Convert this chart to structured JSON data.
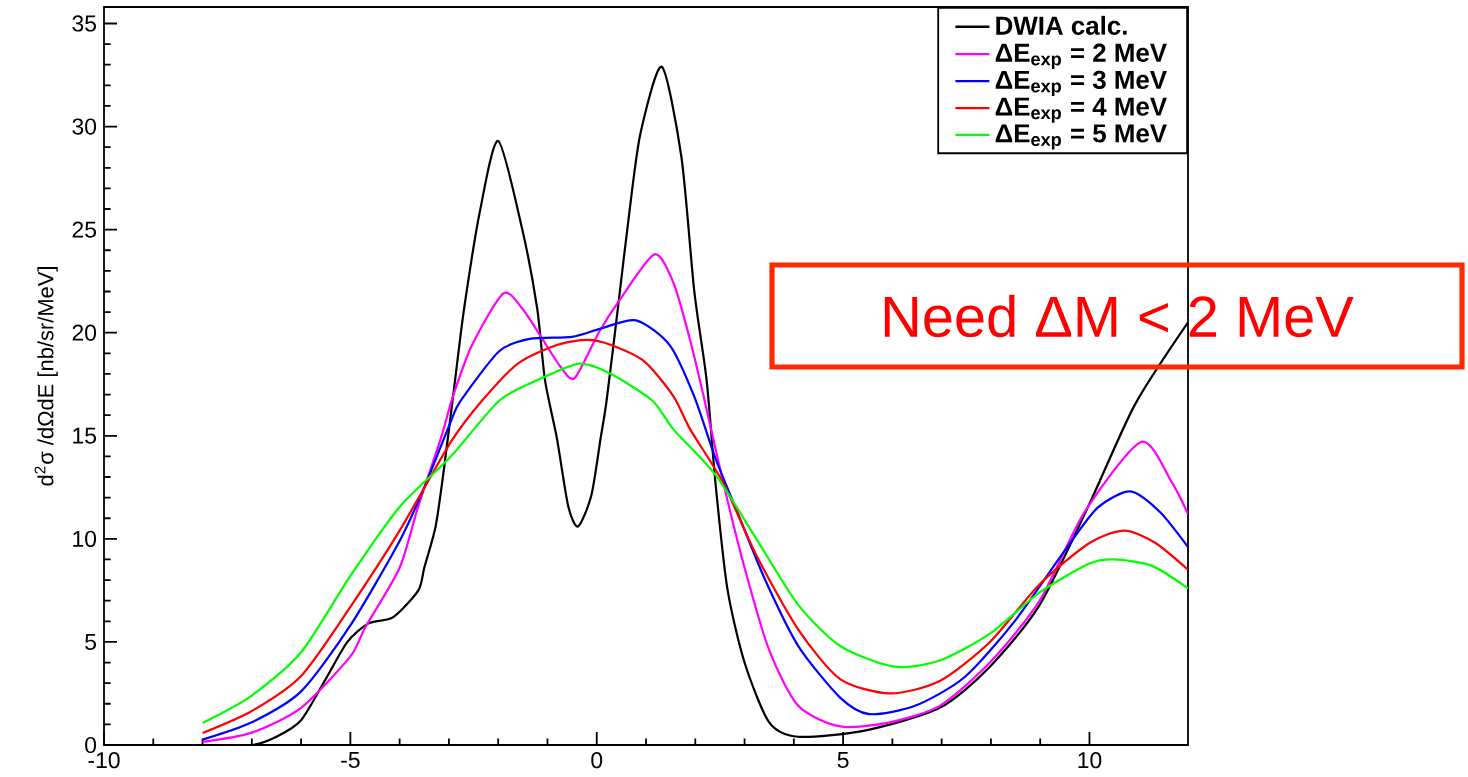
{
  "chart_data": {
    "type": "line",
    "ylabel": "d$^{2}$σ /dΩdE [nb/sr/MeV]",
    "xlim": [
      -10,
      12
    ],
    "ylim": [
      0,
      35.8
    ],
    "xticks": [
      -10,
      -5,
      0,
      5,
      10
    ],
    "yticks": [
      0,
      5,
      10,
      15,
      20,
      25,
      30,
      35
    ],
    "legend": "top right",
    "annotations": [
      "Need ΔM < 2 MeV"
    ],
    "series": [
      {
        "name": "DWIA calc.",
        "color": "#000000",
        "x": [
          -8,
          -7,
          -6.5,
          -6,
          -5.5,
          -5.06,
          -4.63,
          -4.13,
          -3.62,
          -3.5,
          -3.27,
          -3.1,
          -2.88,
          -2.69,
          -2.37,
          -2.0,
          -1.52,
          -1.21,
          -1.05,
          -0.81,
          -0.58,
          -0.38,
          -0.11,
          0.08,
          0.2,
          0.43,
          0.67,
          0.89,
          1.32,
          1.72,
          1.98,
          2.23,
          2.41,
          2.65,
          3.0,
          3.5,
          4.09,
          5.44,
          6.96,
          7.98,
          8.99,
          10.0,
          10.92,
          12.0
        ],
        "values": [
          0,
          0,
          0.4,
          1.2,
          3.2,
          5.0,
          5.9,
          6.2,
          7.5,
          8.6,
          10.6,
          13.4,
          17.6,
          21.2,
          25.9,
          29.3,
          25.1,
          21.2,
          17.7,
          14.9,
          11.6,
          10.6,
          12.1,
          14.9,
          16.7,
          21.2,
          26.0,
          29.7,
          32.9,
          28.5,
          22.0,
          17.7,
          12.7,
          7.6,
          4.0,
          1.1,
          0.4,
          0.7,
          1.8,
          3.8,
          6.8,
          11.7,
          16.5,
          20.5
        ]
      },
      {
        "name": "ΔE$_{exp}$ = 2 MeV",
        "color": "#ff00ff",
        "x": [
          -8,
          -7,
          -6,
          -5,
          -4.7,
          -4,
          -3.62,
          -3.16,
          -2.92,
          -2.53,
          -1.9,
          -1.52,
          -1.13,
          -0.75,
          -0.45,
          0.04,
          0.47,
          1.17,
          1.56,
          1.9,
          2.19,
          2.57,
          3.0,
          3.5,
          4.09,
          4.94,
          5.95,
          6.96,
          7.98,
          8.99,
          9.9,
          11.05,
          11.68,
          12.0
        ],
        "values": [
          0.15,
          0.6,
          1.8,
          4.3,
          5.7,
          8.6,
          11.6,
          14.9,
          16.9,
          19.4,
          21.9,
          21.2,
          19.8,
          18.4,
          17.8,
          20.0,
          21.6,
          23.8,
          22.4,
          19.6,
          16.7,
          12.7,
          8.6,
          4.6,
          1.9,
          0.9,
          1.1,
          1.9,
          4.0,
          7.0,
          11.3,
          14.7,
          12.7,
          11.2
        ]
      },
      {
        "name": "ΔE$_{exp}$ = 3 MeV",
        "color": "#0000ff",
        "x": [
          -8,
          -7,
          -6,
          -5,
          -4,
          -3.5,
          -2.96,
          -2.76,
          -1.98,
          -1.36,
          -0.5,
          0.08,
          0.8,
          1.48,
          1.98,
          2.41,
          2.82,
          3.42,
          4.09,
          4.94,
          5.53,
          6.46,
          7.47,
          8.48,
          9.49,
          10.16,
          10.83,
          11.43,
          12.0
        ],
        "values": [
          0.26,
          1.1,
          2.6,
          5.8,
          9.9,
          12.5,
          15.7,
          16.7,
          19.1,
          19.7,
          19.8,
          20.2,
          20.6,
          19.4,
          16.9,
          13.9,
          11.5,
          8.0,
          4.8,
          2.3,
          1.5,
          1.9,
          3.3,
          6.0,
          9.4,
          11.5,
          12.3,
          11.3,
          9.6
        ]
      },
      {
        "name": "ΔE$_{exp}$ = 4 MeV",
        "color": "#ff0000",
        "x": [
          -8,
          -7,
          -6,
          -5,
          -4,
          -2.96,
          -2.33,
          -1.6,
          -0.81,
          -0.19,
          0.29,
          0.97,
          1.56,
          1.9,
          2.57,
          3.24,
          4.09,
          4.94,
          5.95,
          6.96,
          7.98,
          8.99,
          10.0,
          10.71,
          11.34,
          12.0
        ],
        "values": [
          0.58,
          1.65,
          3.35,
          6.7,
          10.4,
          14.7,
          16.7,
          18.5,
          19.4,
          19.65,
          19.4,
          18.6,
          16.9,
          15.3,
          12.7,
          9.2,
          5.6,
          3.2,
          2.5,
          3.1,
          5.0,
          7.8,
          9.8,
          10.4,
          9.8,
          8.5
        ]
      },
      {
        "name": "ΔE$_{exp}$ = 5 MeV",
        "color": "#00ff00",
        "x": [
          -8,
          -7,
          -6,
          -5,
          -4,
          -2.96,
          -1.98,
          -1.2,
          -0.35,
          0.29,
          1.13,
          1.56,
          2.41,
          3.24,
          4.09,
          4.94,
          6.03,
          6.96,
          7.98,
          8.99,
          10.0,
          10.5,
          11.26,
          12.0
        ],
        "values": [
          1.07,
          2.4,
          4.5,
          8.2,
          11.55,
          14.0,
          16.7,
          17.7,
          18.5,
          18.0,
          16.7,
          15.3,
          13.1,
          10.0,
          6.8,
          4.8,
          3.8,
          4.1,
          5.4,
          7.4,
          8.8,
          9.0,
          8.7,
          7.6
        ]
      }
    ]
  }
}
